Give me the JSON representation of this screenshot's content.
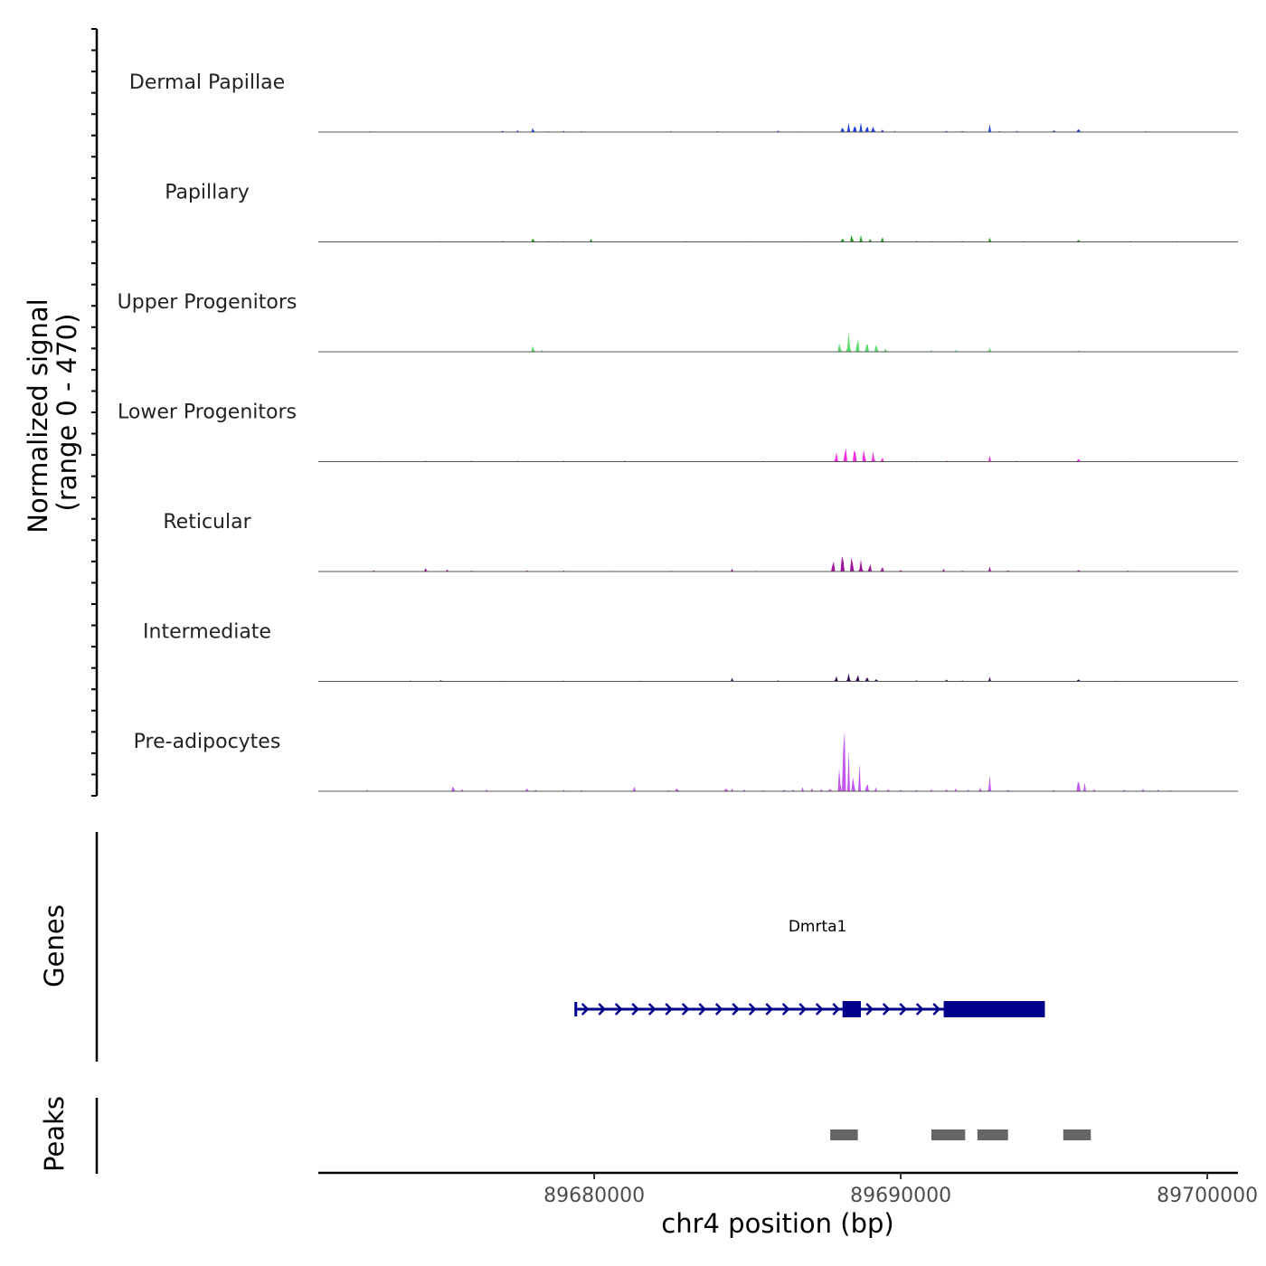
{
  "chart_data": {
    "type": "area",
    "chromosome": "chr4",
    "x_range": [
      89671000,
      89701000
    ],
    "signal_axis": {
      "title_line1": "Normalized signal",
      "title_line2": "(range 0 - 470)",
      "range": [
        0,
        470
      ]
    },
    "x_axis": {
      "title": "chr4 position (bp)",
      "ticks": [
        89680000,
        89690000,
        89700000
      ],
      "tick_labels": [
        "89680000",
        "89690000",
        "89700000"
      ]
    },
    "tracks": [
      {
        "name": "Dermal Papillae",
        "color": "#1f3fd6",
        "ymax": 470,
        "peaks": [
          [
            89672700,
            8,
            40
          ],
          [
            89677000,
            10,
            45
          ],
          [
            89677500,
            10,
            40
          ],
          [
            89678000,
            22,
            50
          ],
          [
            89678500,
            8,
            40
          ],
          [
            89679000,
            8,
            35
          ],
          [
            89679600,
            8,
            40
          ],
          [
            89682500,
            6,
            40
          ],
          [
            89684000,
            6,
            40
          ],
          [
            89686000,
            8,
            40
          ],
          [
            89686600,
            6,
            40
          ],
          [
            89688100,
            30,
            60
          ],
          [
            89688300,
            45,
            50
          ],
          [
            89688500,
            55,
            50
          ],
          [
            89688700,
            50,
            50
          ],
          [
            89688900,
            42,
            50
          ],
          [
            89689100,
            35,
            60
          ],
          [
            89689400,
            15,
            50
          ],
          [
            89689800,
            8,
            40
          ],
          [
            89691500,
            10,
            40
          ],
          [
            89692000,
            10,
            40
          ],
          [
            89692900,
            45,
            45
          ],
          [
            89693200,
            8,
            40
          ],
          [
            89693800,
            10,
            40
          ],
          [
            89695000,
            15,
            40
          ],
          [
            89695800,
            30,
            40
          ],
          [
            89697000,
            6,
            40
          ],
          [
            89698000,
            6,
            40
          ]
        ]
      },
      {
        "name": "Papillary",
        "color": "#1fa21f",
        "ymax": 470,
        "peaks": [
          [
            89675000,
            6,
            50
          ],
          [
            89677000,
            8,
            50
          ],
          [
            89678000,
            25,
            55
          ],
          [
            89678500,
            8,
            40
          ],
          [
            89679000,
            6,
            40
          ],
          [
            89679900,
            18,
            45
          ],
          [
            89683000,
            6,
            40
          ],
          [
            89685000,
            6,
            40
          ],
          [
            89687000,
            6,
            40
          ],
          [
            89688100,
            30,
            50
          ],
          [
            89688400,
            50,
            50
          ],
          [
            89688700,
            35,
            50
          ],
          [
            89689000,
            20,
            50
          ],
          [
            89689400,
            28,
            50
          ],
          [
            89690500,
            8,
            40
          ],
          [
            89691000,
            6,
            40
          ],
          [
            89692000,
            8,
            40
          ],
          [
            89692900,
            30,
            45
          ],
          [
            89694000,
            6,
            40
          ],
          [
            89695800,
            20,
            45
          ],
          [
            89697500,
            6,
            40
          ],
          [
            89699000,
            6,
            40
          ]
        ]
      },
      {
        "name": "Upper Progenitors",
        "color": "#5cdb6e",
        "ymax": 470,
        "peaks": [
          [
            89678000,
            35,
            55
          ],
          [
            89678300,
            10,
            40
          ],
          [
            89688000,
            60,
            55
          ],
          [
            89688300,
            120,
            55
          ],
          [
            89688600,
            85,
            55
          ],
          [
            89688900,
            65,
            55
          ],
          [
            89689200,
            55,
            55
          ],
          [
            89689500,
            20,
            50
          ],
          [
            89691000,
            10,
            40
          ],
          [
            89691800,
            10,
            40
          ],
          [
            89692900,
            25,
            45
          ],
          [
            89695800,
            12,
            40
          ]
        ]
      },
      {
        "name": "Lower Progenitors",
        "color": "#f22ee0",
        "ymax": 470,
        "peaks": [
          [
            89673000,
            6,
            40
          ],
          [
            89674500,
            6,
            40
          ],
          [
            89676000,
            6,
            40
          ],
          [
            89677500,
            8,
            40
          ],
          [
            89679000,
            8,
            40
          ],
          [
            89681000,
            6,
            40
          ],
          [
            89683500,
            6,
            40
          ],
          [
            89685500,
            6,
            40
          ],
          [
            89687000,
            6,
            40
          ],
          [
            89687900,
            60,
            55
          ],
          [
            89688200,
            100,
            55
          ],
          [
            89688500,
            90,
            55
          ],
          [
            89688800,
            70,
            55
          ],
          [
            89689100,
            50,
            55
          ],
          [
            89689400,
            28,
            50
          ],
          [
            89690500,
            8,
            40
          ],
          [
            89691500,
            10,
            40
          ],
          [
            89692900,
            30,
            45
          ],
          [
            89693800,
            8,
            40
          ],
          [
            89695800,
            28,
            40
          ],
          [
            89697500,
            6,
            40
          ]
        ]
      },
      {
        "name": "Reticular",
        "color": "#a0119a",
        "ymax": 470,
        "peaks": [
          [
            89672800,
            10,
            40
          ],
          [
            89674500,
            20,
            55
          ],
          [
            89675200,
            12,
            40
          ],
          [
            89676000,
            6,
            40
          ],
          [
            89677800,
            10,
            40
          ],
          [
            89679000,
            8,
            40
          ],
          [
            89680500,
            6,
            40
          ],
          [
            89682500,
            6,
            40
          ],
          [
            89684500,
            18,
            45
          ],
          [
            89685300,
            6,
            40
          ],
          [
            89687800,
            70,
            55
          ],
          [
            89688100,
            120,
            55
          ],
          [
            89688400,
            95,
            55
          ],
          [
            89688700,
            70,
            55
          ],
          [
            89689000,
            45,
            55
          ],
          [
            89689400,
            30,
            55
          ],
          [
            89690000,
            10,
            50
          ],
          [
            89691400,
            15,
            40
          ],
          [
            89692000,
            8,
            40
          ],
          [
            89692900,
            30,
            45
          ],
          [
            89693500,
            10,
            40
          ],
          [
            89695800,
            15,
            40
          ],
          [
            89697400,
            8,
            40
          ]
        ]
      },
      {
        "name": "Intermediate",
        "color": "#3b0a52",
        "ymax": 470,
        "peaks": [
          [
            89674000,
            6,
            40
          ],
          [
            89675000,
            10,
            40
          ],
          [
            89677000,
            6,
            40
          ],
          [
            89679000,
            6,
            40
          ],
          [
            89681500,
            6,
            40
          ],
          [
            89684500,
            20,
            45
          ],
          [
            89686000,
            6,
            40
          ],
          [
            89687900,
            30,
            55
          ],
          [
            89688300,
            45,
            55
          ],
          [
            89688600,
            38,
            55
          ],
          [
            89688900,
            28,
            55
          ],
          [
            89689200,
            18,
            50
          ],
          [
            89690500,
            8,
            40
          ],
          [
            89691500,
            15,
            40
          ],
          [
            89692000,
            8,
            40
          ],
          [
            89692900,
            30,
            45
          ],
          [
            89695800,
            22,
            40
          ],
          [
            89697000,
            6,
            40
          ]
        ]
      },
      {
        "name": "Pre-adipocytes",
        "color": "#c455ef",
        "ymax": 470,
        "peaks": [
          [
            89672600,
            10,
            35
          ],
          [
            89675400,
            45,
            40
          ],
          [
            89675700,
            15,
            35
          ],
          [
            89676500,
            15,
            35
          ],
          [
            89677800,
            25,
            40
          ],
          [
            89678100,
            15,
            35
          ],
          [
            89679000,
            12,
            35
          ],
          [
            89679600,
            12,
            35
          ],
          [
            89681300,
            30,
            40
          ],
          [
            89682400,
            12,
            35
          ],
          [
            89682700,
            28,
            40
          ],
          [
            89684300,
            28,
            40
          ],
          [
            89684500,
            20,
            35
          ],
          [
            89684900,
            12,
            35
          ],
          [
            89685500,
            10,
            35
          ],
          [
            89686200,
            15,
            35
          ],
          [
            89686500,
            15,
            35
          ],
          [
            89686800,
            22,
            35
          ],
          [
            89687100,
            20,
            35
          ],
          [
            89687400,
            18,
            35
          ],
          [
            89687700,
            25,
            35
          ],
          [
            89688000,
            150,
            45
          ],
          [
            89688150,
            460,
            50
          ],
          [
            89688300,
            230,
            40
          ],
          [
            89688450,
            120,
            40
          ],
          [
            89688650,
            160,
            40
          ],
          [
            89688900,
            70,
            40
          ],
          [
            89689200,
            30,
            35
          ],
          [
            89689600,
            18,
            35
          ],
          [
            89690000,
            15,
            35
          ],
          [
            89690500,
            15,
            35
          ],
          [
            89691000,
            12,
            35
          ],
          [
            89691500,
            15,
            35
          ],
          [
            89691800,
            20,
            35
          ],
          [
            89692200,
            10,
            35
          ],
          [
            89692600,
            25,
            35
          ],
          [
            89692900,
            95,
            45
          ],
          [
            89693500,
            15,
            35
          ],
          [
            89695000,
            12,
            35
          ],
          [
            89695800,
            100,
            40
          ],
          [
            89696000,
            45,
            35
          ],
          [
            89696300,
            15,
            35
          ],
          [
            89697300,
            15,
            35
          ],
          [
            89697900,
            15,
            35
          ],
          [
            89698400,
            15,
            35
          ],
          [
            89698800,
            10,
            35
          ]
        ]
      }
    ],
    "genes_panel": {
      "label": "Genes",
      "gene_name": "Dmrta1",
      "strand": "+",
      "transcript_start": 89679400,
      "transcript_end": 89694700,
      "exons": [
        [
          89688100,
          89688700
        ],
        [
          89691400,
          89694700
        ]
      ]
    },
    "peaks_panel": {
      "label": "Peaks",
      "color": "#666666",
      "regions": [
        [
          89687700,
          89688600
        ],
        [
          89691000,
          89692100
        ],
        [
          89692500,
          89693500
        ],
        [
          89695300,
          89696200
        ]
      ]
    }
  }
}
